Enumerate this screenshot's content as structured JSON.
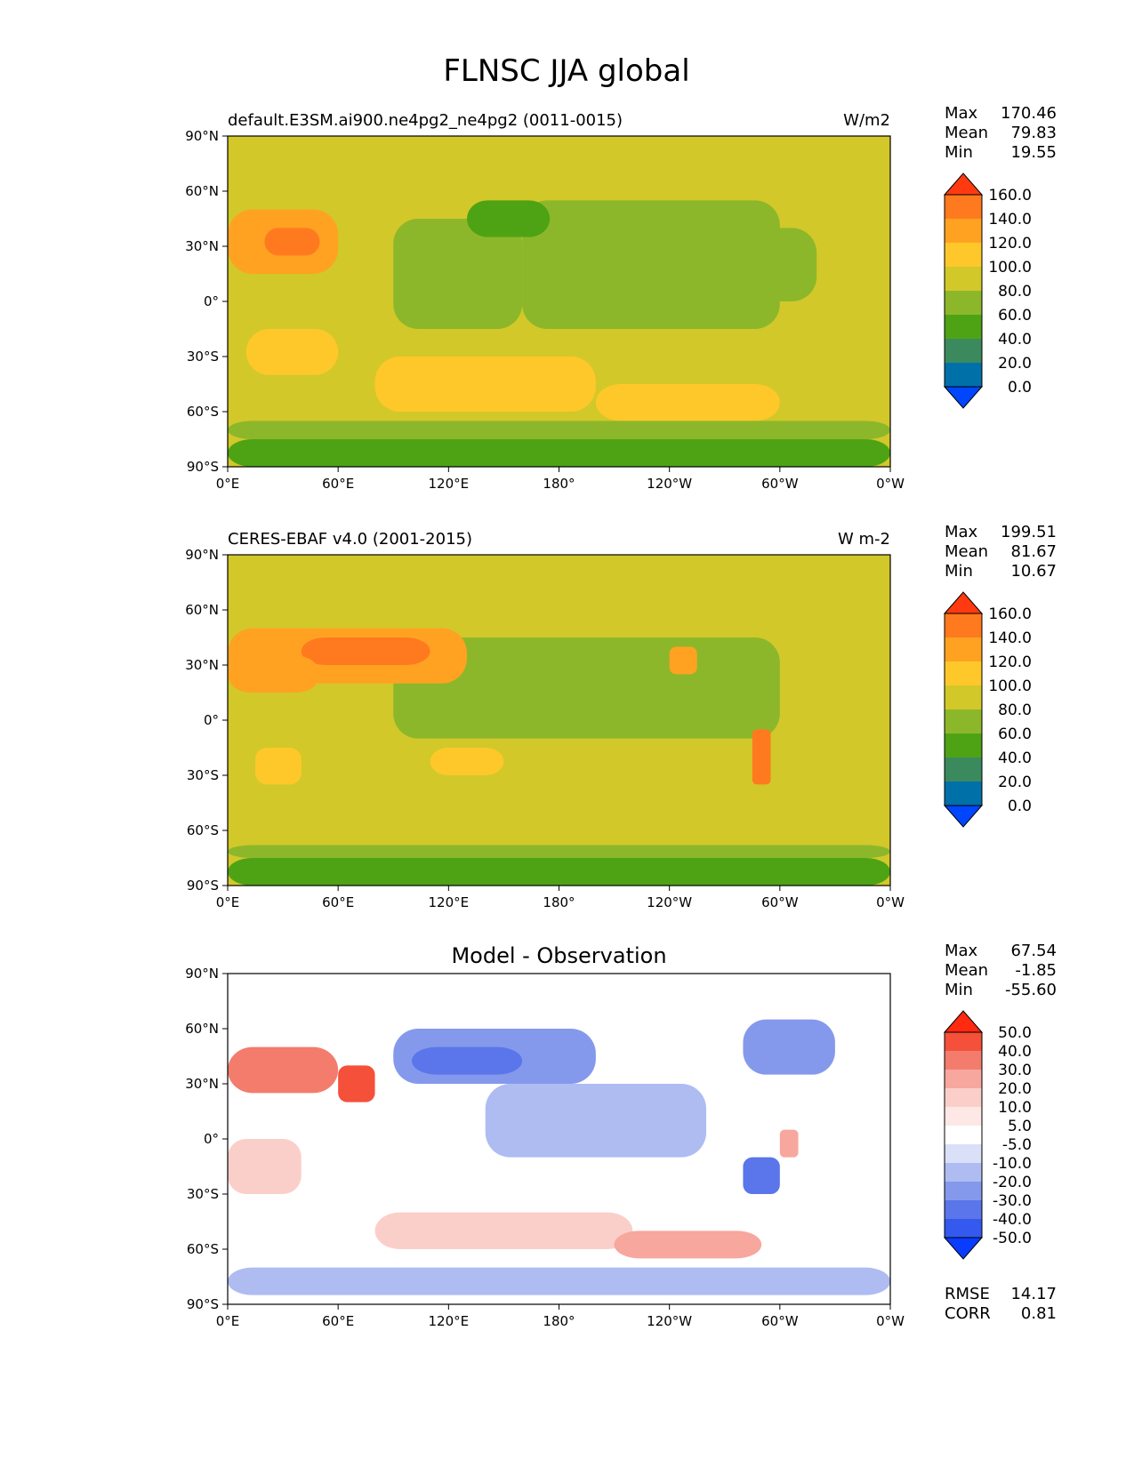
{
  "figure": {
    "title": "FLNSC JJA global"
  },
  "chart_data": [
    {
      "type": "heatmap",
      "panel": "model",
      "title_left": "default.E3SM.ai900.ne4pg2_ne4pg2 (0011-0015)",
      "title_center": "",
      "units": "W/m2",
      "stats": {
        "Max": "170.46",
        "Mean": "79.83",
        "Min": "19.55"
      },
      "x_ticks": [
        "0°E",
        "60°E",
        "120°E",
        "180°",
        "120°W",
        "60°W",
        "0°W"
      ],
      "y_ticks": [
        "90°N",
        "60°N",
        "30°N",
        "0°",
        "30°S",
        "60°S",
        "90°S"
      ],
      "xlim": [
        0,
        360
      ],
      "ylim": [
        -90,
        90
      ],
      "colorbar": {
        "labels": [
          "160.0",
          "140.0",
          "120.0",
          "100.0",
          "80.0",
          "60.0",
          "40.0",
          "20.0",
          "0.0"
        ],
        "colors": [
          "#ff3a10",
          "#ff7a1e",
          "#ffa222",
          "#ffc82a",
          "#d2c82a",
          "#8db72a",
          "#4ea315",
          "#3a8a5e",
          "#0070a8",
          "#0046ff"
        ]
      },
      "regions": [
        {
          "lon": [
            0,
            360
          ],
          "lat": [
            -90,
            90
          ],
          "level": 4
        },
        {
          "lon": [
            160,
            300
          ],
          "lat": [
            -15,
            55
          ],
          "level": 5
        },
        {
          "lon": [
            90,
            160
          ],
          "lat": [
            -15,
            45
          ],
          "level": 5
        },
        {
          "lon": [
            260,
            320
          ],
          "lat": [
            0,
            40
          ],
          "level": 5
        },
        {
          "lon": [
            130,
            175
          ],
          "lat": [
            35,
            55
          ],
          "level": 6
        },
        {
          "lon": [
            0,
            60
          ],
          "lat": [
            15,
            50
          ],
          "level": 2
        },
        {
          "lon": [
            20,
            50
          ],
          "lat": [
            25,
            40
          ],
          "level": 1
        },
        {
          "lon": [
            10,
            60
          ],
          "lat": [
            -40,
            -15
          ],
          "level": 3
        },
        {
          "lon": [
            80,
            200
          ],
          "lat": [
            -60,
            -30
          ],
          "level": 3
        },
        {
          "lon": [
            200,
            300
          ],
          "lat": [
            -65,
            -45
          ],
          "level": 3
        },
        {
          "lon": [
            0,
            360
          ],
          "lat": [
            -90,
            -75
          ],
          "level": 6
        },
        {
          "lon": [
            0,
            360
          ],
          "lat": [
            -75,
            -65
          ],
          "level": 5
        }
      ]
    },
    {
      "type": "heatmap",
      "panel": "observation",
      "title_left": "CERES-EBAF v4.0 (2001-2015)",
      "title_center": "",
      "units": "W m-2",
      "stats": {
        "Max": "199.51",
        "Mean": "81.67",
        "Min": "10.67"
      },
      "x_ticks": [
        "0°E",
        "60°E",
        "120°E",
        "180°",
        "120°W",
        "60°W",
        "0°W"
      ],
      "y_ticks": [
        "90°N",
        "60°N",
        "30°N",
        "0°",
        "30°S",
        "60°S",
        "90°S"
      ],
      "xlim": [
        0,
        360
      ],
      "ylim": [
        -90,
        90
      ],
      "colorbar": {
        "labels": [
          "160.0",
          "140.0",
          "120.0",
          "100.0",
          "80.0",
          "60.0",
          "40.0",
          "20.0",
          "0.0"
        ],
        "colors": [
          "#ff3a10",
          "#ff7a1e",
          "#ffa222",
          "#ffc82a",
          "#d2c82a",
          "#8db72a",
          "#4ea315",
          "#3a8a5e",
          "#0070a8",
          "#0046ff"
        ]
      },
      "regions": [
        {
          "lon": [
            0,
            360
          ],
          "lat": [
            -90,
            90
          ],
          "level": 4
        },
        {
          "lon": [
            90,
            300
          ],
          "lat": [
            -10,
            45
          ],
          "level": 5
        },
        {
          "lon": [
            0,
            130
          ],
          "lat": [
            20,
            50
          ],
          "level": 2
        },
        {
          "lon": [
            40,
            110
          ],
          "lat": [
            30,
            45
          ],
          "level": 1
        },
        {
          "lon": [
            0,
            50
          ],
          "lat": [
            15,
            35
          ],
          "level": 2
        },
        {
          "lon": [
            110,
            150
          ],
          "lat": [
            -30,
            -15
          ],
          "level": 3
        },
        {
          "lon": [
            15,
            40
          ],
          "lat": [
            -35,
            -15
          ],
          "level": 3
        },
        {
          "lon": [
            240,
            255
          ],
          "lat": [
            25,
            40
          ],
          "level": 2
        },
        {
          "lon": [
            285,
            295
          ],
          "lat": [
            -35,
            -5
          ],
          "level": 1
        },
        {
          "lon": [
            0,
            360
          ],
          "lat": [
            -90,
            -75
          ],
          "level": 6
        },
        {
          "lon": [
            0,
            360
          ],
          "lat": [
            -75,
            -68
          ],
          "level": 5
        }
      ]
    },
    {
      "type": "heatmap",
      "panel": "difference",
      "title_left": "",
      "title_center": "Model - Observation",
      "units": "",
      "stats": {
        "Max": "67.54",
        "Mean": "-1.85",
        "Min": "-55.60"
      },
      "metrics": {
        "RMSE": "14.17",
        "CORR": "0.81"
      },
      "x_ticks": [
        "0°E",
        "60°E",
        "120°E",
        "180°",
        "120°W",
        "60°W",
        "0°W"
      ],
      "y_ticks": [
        "90°N",
        "60°N",
        "30°N",
        "0°",
        "30°S",
        "60°S",
        "90°S"
      ],
      "xlim": [
        0,
        360
      ],
      "ylim": [
        -90,
        90
      ],
      "colorbar": {
        "labels": [
          "50.0",
          "40.0",
          "30.0",
          "20.0",
          "10.0",
          "5.0",
          "-5.0",
          "-10.0",
          "-20.0",
          "-30.0",
          "-40.0",
          "-50.0"
        ],
        "colors": [
          "#ff2a10",
          "#f5503a",
          "#f47c6c",
          "#f7a79e",
          "#fbcfc9",
          "#fde8e5",
          "#ffffff",
          "#d9e0f8",
          "#aebcf2",
          "#8599ec",
          "#5a76ea",
          "#3359ee",
          "#0a3cff"
        ]
      },
      "regions": [
        {
          "lon": [
            0,
            360
          ],
          "lat": [
            -90,
            90
          ],
          "level": 6
        },
        {
          "lon": [
            0,
            60
          ],
          "lat": [
            25,
            50
          ],
          "level": 2
        },
        {
          "lon": [
            60,
            80
          ],
          "lat": [
            20,
            40
          ],
          "level": 1
        },
        {
          "lon": [
            90,
            200
          ],
          "lat": [
            30,
            60
          ],
          "level": 9
        },
        {
          "lon": [
            100,
            160
          ],
          "lat": [
            35,
            50
          ],
          "level": 10
        },
        {
          "lon": [
            140,
            260
          ],
          "lat": [
            -10,
            30
          ],
          "level": 8
        },
        {
          "lon": [
            280,
            330
          ],
          "lat": [
            35,
            65
          ],
          "level": 9
        },
        {
          "lon": [
            0,
            40
          ],
          "lat": [
            -30,
            0
          ],
          "level": 4
        },
        {
          "lon": [
            80,
            220
          ],
          "lat": [
            -60,
            -40
          ],
          "level": 4
        },
        {
          "lon": [
            210,
            290
          ],
          "lat": [
            -65,
            -50
          ],
          "level": 3
        },
        {
          "lon": [
            0,
            360
          ],
          "lat": [
            -85,
            -70
          ],
          "level": 8
        },
        {
          "lon": [
            280,
            300
          ],
          "lat": [
            -30,
            -10
          ],
          "level": 10
        },
        {
          "lon": [
            300,
            310
          ],
          "lat": [
            -10,
            5
          ],
          "level": 3
        }
      ]
    }
  ],
  "colors": {
    "outline": "#000000",
    "background": "#ffffff"
  }
}
